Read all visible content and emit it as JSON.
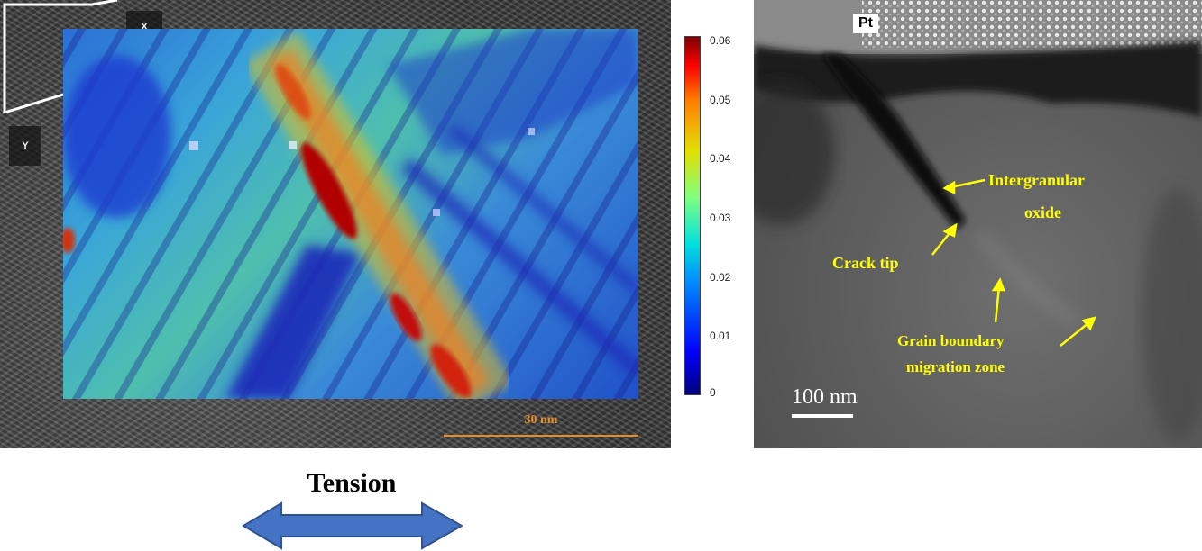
{
  "left_panel": {
    "axis_x": "X",
    "axis_y": "Y",
    "scale_bar": "30 nm",
    "colorbar_ticks": [
      "0.06",
      "0.05",
      "0.04",
      "0.03",
      "0.02",
      "0.01",
      "0"
    ],
    "colormap": "jet"
  },
  "right_panel": {
    "pt_label": "Pt",
    "intergranular": "Intergranular",
    "oxide": "oxide",
    "crack_tip": "Crack tip",
    "gb_line1": "Grain boundary",
    "gb_line2": "migration zone",
    "scale_bar": "100 nm",
    "label_color": "#ffff00"
  },
  "tension": {
    "label": "Tension",
    "arrow_color": "#4472c4"
  }
}
